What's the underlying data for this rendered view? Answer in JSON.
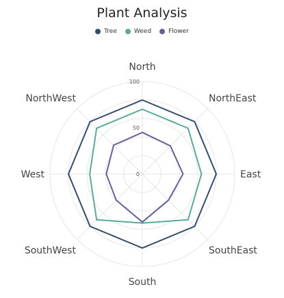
{
  "chart_data": {
    "type": "radar",
    "title": "Plant Analysis",
    "categories": [
      "North",
      "NorthEast",
      "East",
      "SouthEast",
      "South",
      "SouthWest",
      "West",
      "NorthWest"
    ],
    "series": [
      {
        "name": "Tree",
        "color": "#344a6e",
        "values": [
          80,
          80,
          80,
          80,
          80,
          80,
          80,
          80
        ]
      },
      {
        "name": "Weed",
        "color": "#5ba99a",
        "values": [
          70,
          70,
          64,
          70,
          53,
          70,
          57,
          70
        ]
      },
      {
        "name": "Flower",
        "color": "#6e5a9a",
        "values": [
          45,
          43,
          44,
          40,
          52,
          40,
          39,
          44
        ]
      }
    ],
    "radial_axis": {
      "min": 0,
      "max": 100,
      "tick_labels": [
        "0",
        "50",
        "100"
      ]
    },
    "grid": true,
    "legend_position": "top"
  }
}
